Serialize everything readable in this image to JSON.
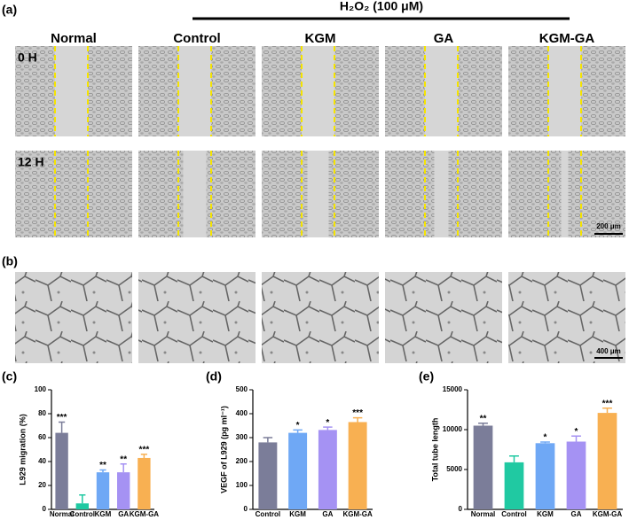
{
  "panel_labels": [
    "(a)",
    "(b)",
    "(c)",
    "(d)",
    "(e)"
  ],
  "header": "H₂O₂ (100 μM)",
  "columns": [
    "Normal",
    "Control",
    "KGM",
    "GA",
    "KGM-GA"
  ],
  "rows": [
    "0 H",
    "12 H"
  ],
  "scale_bars": [
    "200 μm",
    "400 μm"
  ],
  "chart_data": [
    {
      "type": "bar",
      "ylabel": "L929 migration (%)",
      "categories": [
        "Normal",
        "Control",
        "KGM",
        "GA",
        "KGM-GA"
      ],
      "values": [
        64,
        5,
        31,
        31,
        43
      ],
      "errors": [
        9,
        7,
        2,
        7,
        3
      ],
      "annotations": [
        "***",
        null,
        "**",
        "**",
        "***"
      ],
      "colors": [
        "#7b7d99",
        "#20c9a2",
        "#6fa8f5",
        "#a592f3",
        "#f8b052"
      ],
      "ylim": [
        0,
        100
      ],
      "yticks": [
        0,
        20,
        40,
        60,
        80,
        100
      ]
    },
    {
      "type": "bar",
      "ylabel": "VEGF of L929 (pg ml⁻¹)",
      "categories": [
        "Control",
        "KGM",
        "GA",
        "KGM-GA"
      ],
      "values": [
        280,
        320,
        332,
        365
      ],
      "errors": [
        20,
        12,
        12,
        18
      ],
      "annotations": [
        null,
        "*",
        "*",
        "***"
      ],
      "colors": [
        "#7b7d99",
        "#6fa8f5",
        "#a592f3",
        "#f8b052"
      ],
      "ylim": [
        0,
        500
      ],
      "yticks": [
        0,
        100,
        200,
        300,
        400,
        500
      ]
    },
    {
      "type": "bar",
      "ylabel": "Total tube length",
      "categories": [
        "Normal",
        "Control",
        "KGM",
        "GA",
        "KGM-GA"
      ],
      "values": [
        10500,
        5900,
        8300,
        8500,
        12100
      ],
      "errors": [
        300,
        800,
        150,
        700,
        600
      ],
      "annotations": [
        "**",
        null,
        "*",
        "*",
        "***"
      ],
      "colors": [
        "#7b7d99",
        "#20c9a2",
        "#6fa8f5",
        "#a592f3",
        "#f8b052"
      ],
      "ylim": [
        0,
        15000
      ],
      "yticks": [
        0,
        5000,
        10000,
        15000
      ]
    }
  ]
}
